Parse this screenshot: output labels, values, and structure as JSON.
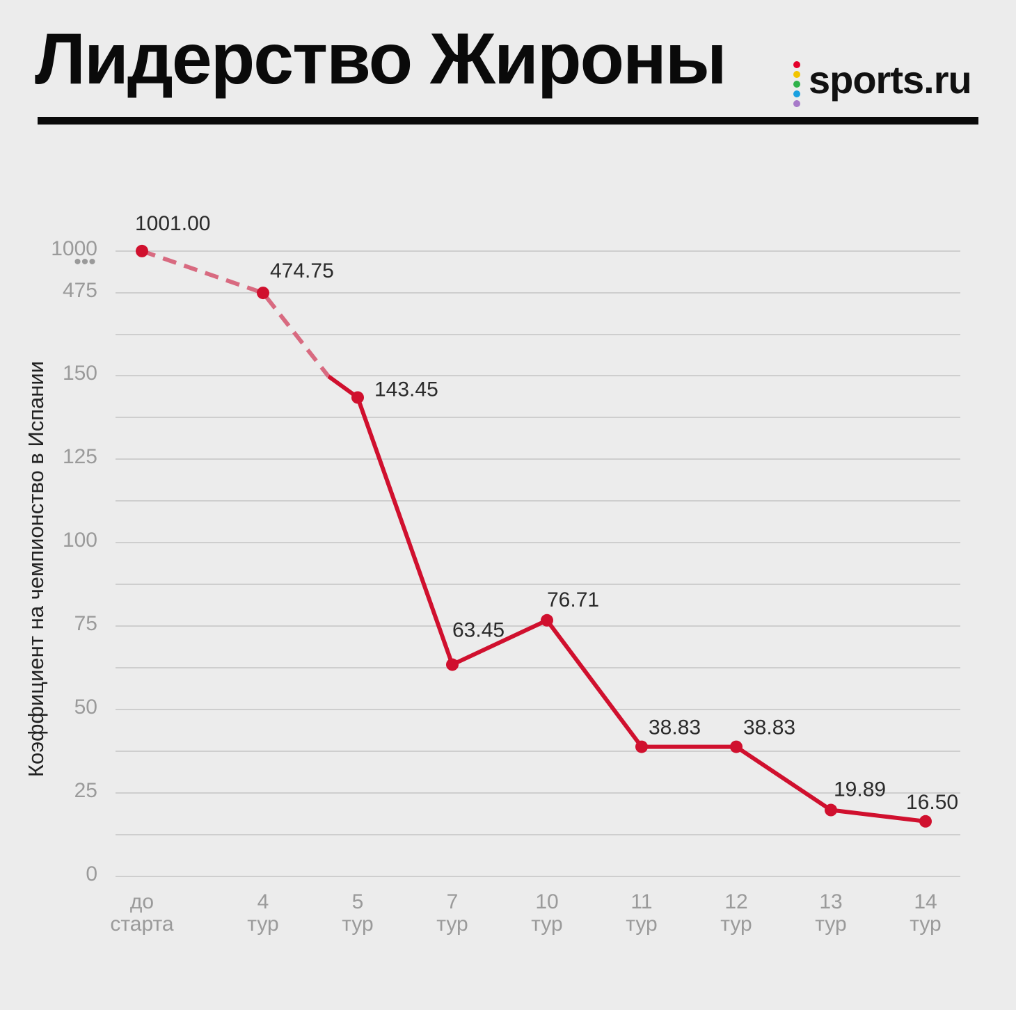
{
  "header": {
    "title": "Лидерство Жироны",
    "logo_text": "sports.ru",
    "logo_dot_colors": [
      "#e4002b",
      "#f2c500",
      "#2fb24a",
      "#1aa0e0",
      "#a77ac9"
    ]
  },
  "chart_data": {
    "type": "line",
    "title": "Лидерство Жироны",
    "ylabel": "Коэффициент на чемпионство в Испании",
    "xlabel": "",
    "categories": [
      "до старта",
      "4 тур",
      "5 тур",
      "7 тур",
      "10 тур",
      "11 тур",
      "12 тур",
      "13 тур",
      "14 тур"
    ],
    "category_lines": [
      [
        "до",
        "старта"
      ],
      [
        "4",
        "тур"
      ],
      [
        "5",
        "тур"
      ],
      [
        "7",
        "тур"
      ],
      [
        "10",
        "тур"
      ],
      [
        "11",
        "тур"
      ],
      [
        "12",
        "тур"
      ],
      [
        "13",
        "тур"
      ],
      [
        "14",
        "тур"
      ]
    ],
    "values": [
      1001.0,
      474.75,
      143.45,
      63.45,
      76.71,
      38.83,
      38.83,
      19.89,
      16.5
    ],
    "value_labels": [
      "1001.00",
      "474.75",
      "143.45",
      "63.45",
      "76.71",
      "38.83",
      "38.83",
      "19.89",
      "16.50"
    ],
    "y_axis": {
      "scale": "broken",
      "linear_range": [
        0,
        150
      ],
      "ticks": [
        0,
        25,
        50,
        75,
        100,
        125,
        150,
        475,
        1000
      ],
      "tick_labels": [
        "0",
        "25",
        "50",
        "75",
        "100",
        "125",
        "150",
        "475",
        "1000"
      ],
      "break_marker": "•••"
    },
    "dashed_segment": "до старта – 5 тур",
    "grid": true,
    "legend": "none",
    "colors": {
      "line": "#d0102e",
      "dashed_line": "#d86a80",
      "grid": "#c4c4c4",
      "tick_text": "#9a9a9a",
      "label_text": "#2b2b2b"
    }
  }
}
